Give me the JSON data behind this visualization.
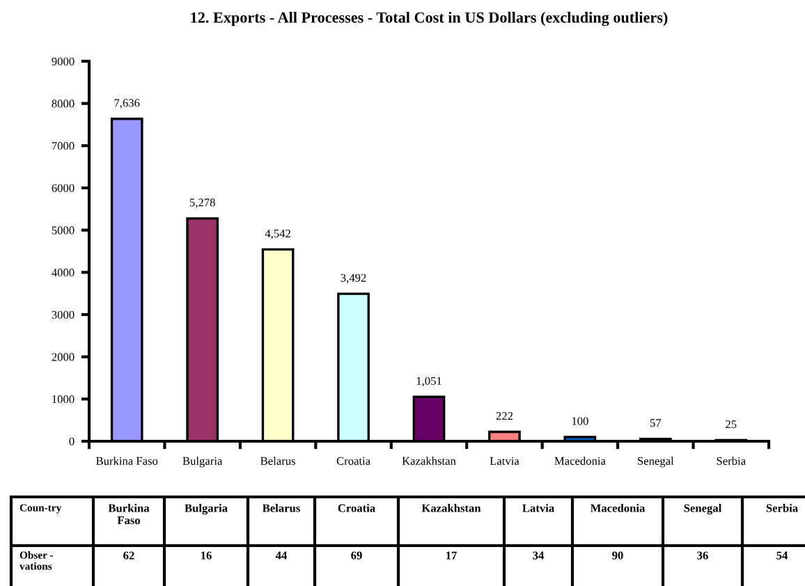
{
  "chart_data": [
    {
      "type": "bar",
      "title": "12. Exports - All Processes - Total Cost in US Dollars (excluding outliers)",
      "categories": [
        "Burkina Faso",
        "Bulgaria",
        "Belarus",
        "Croatia",
        "Kazakhstan",
        "Latvia",
        "Macedonia",
        "Senegal",
        "Serbia"
      ],
      "values": [
        7636,
        5278,
        4542,
        3492,
        1051,
        222,
        100,
        57,
        25
      ],
      "value_labels": [
        "7,636",
        "5,278",
        "4,542",
        "3,492",
        "1,051",
        "222",
        "100",
        "57",
        "25"
      ],
      "colors": [
        "#9999ff",
        "#993366",
        "#ffffcc",
        "#ccffff",
        "#660066",
        "#ff8080",
        "#0066cc",
        "#000080",
        "#ff00ff"
      ],
      "ylim": [
        0,
        9000
      ],
      "yticks": [
        0,
        1000,
        2000,
        3000,
        4000,
        5000,
        6000,
        7000,
        8000,
        9000
      ],
      "grid": false,
      "legend": false
    },
    {
      "type": "other",
      "categories": [
        "Burkina Faso",
        "Bulgaria",
        "Belarus",
        "Croatia",
        "Kazakhstan",
        "Latvia",
        "Macedonia",
        "Senegal",
        "Serbia"
      ],
      "values": [
        62,
        16,
        44,
        69,
        17,
        34,
        90,
        36,
        54
      ],
      "data_labels": true,
      "annotations": [
        "Coun-try",
        "Obser - vations"
      ]
    }
  ]
}
